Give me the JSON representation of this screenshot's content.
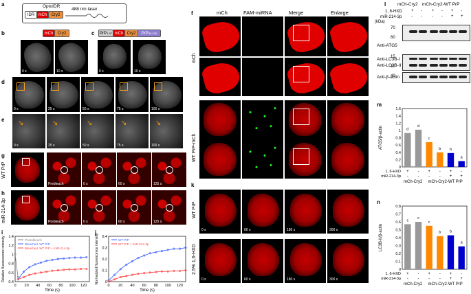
{
  "panels": {
    "a": "a",
    "b": "b",
    "c": "c",
    "d": "d",
    "e": "e",
    "f": "f",
    "g": "g",
    "h": "h",
    "i": "i",
    "j": "j",
    "k": "k",
    "l": "l",
    "m": "m",
    "n": "n"
  },
  "panel_a": {
    "optoidr": "OptoIDR",
    "idr": "IDR",
    "mch": "mCh",
    "cry2": "Cry2",
    "laser": "488 nm laser"
  },
  "panel_b": {
    "mch": "mCh",
    "cry2": "Cry2"
  },
  "panel_c": {
    "prp1": "PrP",
    "prp1_sub": "1-37",
    "mch": "mCh",
    "cry2": "Cry2",
    "prp2": "PrP",
    "prp2_sub": "38-230"
  },
  "times_bc": [
    "0 s",
    "10 s",
    "0 s",
    "10 s"
  ],
  "times_de": [
    "0 s",
    "25 s",
    "50 s",
    "75 s",
    "100 s"
  ],
  "times_gh": [
    "Prebleach",
    "0 s",
    "60 s",
    "125 s"
  ],
  "row_g": "WT PrP",
  "row_h": "miR-214-3p",
  "panel_f": {
    "cols": [
      "mCh",
      "FAM-miRNA",
      "Merge",
      "Enlarge"
    ],
    "row1": "mCh",
    "row2": "WT PrP-mCh"
  },
  "panel_k": {
    "row1": "WT PrP",
    "row2": "2.5% 1,6-HXD",
    "times": [
      "0 s",
      "60 s",
      "180 s",
      "300 s"
    ]
  },
  "panel_l": {
    "groups": [
      "mCh-Cry2",
      "mCh-Cry2-WT PrP"
    ],
    "hxd": "1, 6-HXD",
    "mir": "miR-214-3p",
    "hxd_signs": [
      "+",
      "-",
      "+",
      "-",
      "+",
      "-"
    ],
    "mir_signs": [
      "-",
      "-",
      "-",
      "-",
      "+",
      "+"
    ],
    "kda": "(kDa)",
    "mw": [
      "70",
      "60",
      "15",
      "10",
      "40"
    ],
    "ab": [
      "Anti-ATG5",
      "Anti-LC3B-I",
      "Anti-LC3B-II",
      "Anti-β-actin"
    ]
  },
  "chart_data": [
    {
      "id": "i",
      "type": "line",
      "xlabel": "Time (s)",
      "ylabel": "Relative fluorescence intensity",
      "xlim": [
        0,
        130
      ],
      "ylim": [
        0.4,
        1.4
      ],
      "xticks": [
        0,
        20,
        40,
        60,
        80,
        100,
        120
      ],
      "yticks": [
        0.4,
        0.6,
        0.8,
        1.0,
        1.2,
        1.4
      ],
      "legend": "top-left",
      "series": [
        {
          "name": "Photobleach",
          "color": "#888888",
          "x": [
            0,
            5
          ],
          "y": [
            1.0,
            0.5
          ]
        },
        {
          "name": "Bleached, WT PrP",
          "color": "#4466ff",
          "x": [
            5,
            15,
            25,
            35,
            45,
            55,
            65,
            75,
            85,
            95,
            105,
            115,
            125
          ],
          "y": [
            0.45,
            0.62,
            0.72,
            0.78,
            0.82,
            0.86,
            0.88,
            0.9,
            0.91,
            0.92,
            0.93,
            0.93,
            0.94
          ]
        },
        {
          "name": "Bleached, WT PrP + miR-214-3p",
          "color": "#ff4444",
          "x": [
            5,
            15,
            25,
            35,
            45,
            55,
            65,
            75,
            85,
            95,
            105,
            115,
            125
          ],
          "y": [
            0.45,
            0.5,
            0.55,
            0.58,
            0.6,
            0.62,
            0.64,
            0.65,
            0.66,
            0.67,
            0.67,
            0.68,
            0.68
          ]
        }
      ]
    },
    {
      "id": "j",
      "type": "line",
      "xlabel": "Time (s)",
      "ylabel": "Normalized fluorescence intensity",
      "xlim": [
        0,
        130
      ],
      "ylim": [
        0,
        0.4
      ],
      "xticks": [
        0,
        20,
        40,
        60,
        80,
        100,
        120
      ],
      "yticks": [
        0,
        0.1,
        0.2,
        0.3,
        0.4
      ],
      "legend": "top-left",
      "series": [
        {
          "name": "WT PrP",
          "color": "#4466ff",
          "x": [
            0,
            10,
            20,
            30,
            40,
            50,
            60,
            70,
            80,
            90,
            100,
            110,
            120,
            130
          ],
          "y": [
            0.01,
            0.06,
            0.11,
            0.15,
            0.18,
            0.21,
            0.23,
            0.25,
            0.26,
            0.27,
            0.28,
            0.29,
            0.29,
            0.3
          ]
        },
        {
          "name": "WT PrP + miR-214-3p",
          "color": "#ff4444",
          "x": [
            0,
            10,
            20,
            30,
            40,
            50,
            60,
            70,
            80,
            90,
            100,
            110,
            120,
            130
          ],
          "y": [
            0.0,
            0.02,
            0.04,
            0.05,
            0.06,
            0.07,
            0.075,
            0.08,
            0.085,
            0.09,
            0.09,
            0.095,
            0.095,
            0.1
          ]
        }
      ]
    },
    {
      "id": "m",
      "type": "bar",
      "ylabel": "ATG5/β-actin",
      "ylim": [
        0,
        1.6
      ],
      "yticks": [
        0,
        0.2,
        0.4,
        0.6,
        0.8,
        1.0,
        1.2,
        1.4,
        1.6
      ],
      "values": [
        0.93,
        1.02,
        0.68,
        0.4,
        0.38,
        0.16
      ],
      "colors": [
        "#999999",
        "#999999",
        "#ff8800",
        "#ff8800",
        "#0000cc",
        "#0000cc"
      ],
      "sig": [
        "d",
        "d",
        "c",
        "b",
        "b",
        "a"
      ],
      "hxd_signs": [
        "+",
        "-",
        "+",
        "-",
        "+",
        "-"
      ],
      "mir_signs": [
        "-",
        "-",
        "-",
        "-",
        "+",
        "+"
      ],
      "row_labels": [
        "1, 6-HXD",
        "miR-214-3p"
      ],
      "groups": [
        "mCh-Cry2",
        "mCh-Cry2-WT PrP"
      ]
    },
    {
      "id": "n",
      "type": "bar",
      "ylabel": "LC3B-II/β-actin",
      "ylim": [
        0,
        0.8
      ],
      "yticks": [
        0,
        0.1,
        0.2,
        0.3,
        0.4,
        0.5,
        0.6,
        0.7,
        0.8
      ],
      "values": [
        0.57,
        0.6,
        0.55,
        0.42,
        0.43,
        0.29
      ],
      "colors": [
        "#999999",
        "#999999",
        "#ff8800",
        "#ff8800",
        "#0000cc",
        "#0000cc"
      ],
      "sig": [
        "c",
        "c",
        "c",
        "b",
        "b",
        "a"
      ],
      "hxd_signs": [
        "+",
        "-",
        "+",
        "-",
        "+",
        "-"
      ],
      "mir_signs": [
        "-",
        "-",
        "-",
        "-",
        "+",
        "+"
      ],
      "row_labels": [
        "1, 6-HXD",
        "miR-214-3p"
      ],
      "groups": [
        "mCh-Cry2",
        "mCh-Cry2-WT PrP"
      ]
    }
  ]
}
